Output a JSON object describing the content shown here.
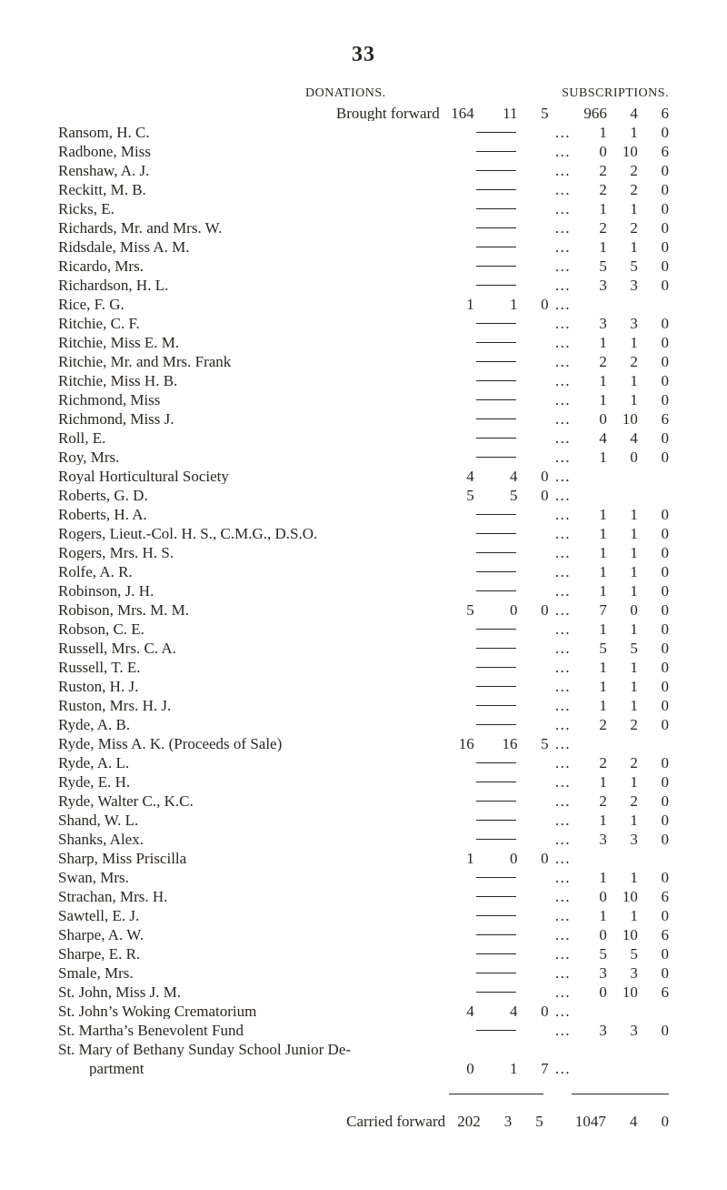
{
  "page_number": "33",
  "col_headers": {
    "donations": "DONATIONS.",
    "subscriptions": "SUBSCRIPTIONS."
  },
  "brought_forward_label": "Brought forward",
  "carried_forward_label": "Carried forward",
  "brought_forward": {
    "don": [
      "164",
      "11",
      "5"
    ],
    "sub": [
      "966",
      "4",
      "6"
    ]
  },
  "carried_forward": {
    "don": [
      "202",
      "3",
      "5"
    ],
    "sub": [
      "1047",
      "4",
      "0"
    ]
  },
  "rows": [
    {
      "name": "Ransom, H. C.",
      "don": null,
      "sub": [
        "1",
        "1",
        "0"
      ]
    },
    {
      "name": "Radbone, Miss",
      "don": null,
      "sub": [
        "0",
        "10",
        "6"
      ]
    },
    {
      "name": "Renshaw, A. J.",
      "don": null,
      "sub": [
        "2",
        "2",
        "0"
      ]
    },
    {
      "name": "Reckitt, M. B.",
      "don": null,
      "sub": [
        "2",
        "2",
        "0"
      ]
    },
    {
      "name": "Ricks, E.",
      "don": null,
      "sub": [
        "1",
        "1",
        "0"
      ]
    },
    {
      "name": "Richards, Mr. and Mrs. W.",
      "don": null,
      "sub": [
        "2",
        "2",
        "0"
      ]
    },
    {
      "name": "Ridsdale, Miss A. M.",
      "don": null,
      "sub": [
        "1",
        "1",
        "0"
      ]
    },
    {
      "name": "Ricardo, Mrs.",
      "don": null,
      "sub": [
        "5",
        "5",
        "0"
      ]
    },
    {
      "name": "Richardson, H. L.",
      "don": null,
      "sub": [
        "3",
        "3",
        "0"
      ]
    },
    {
      "name": "Rice, F. G.",
      "don": [
        "1",
        "1",
        "0"
      ],
      "sub": null,
      "no_sub_dash": true
    },
    {
      "name": "Ritchie, C. F.",
      "don": null,
      "sub": [
        "3",
        "3",
        "0"
      ]
    },
    {
      "name": "Ritchie, Miss E. M.",
      "don": null,
      "sub": [
        "1",
        "1",
        "0"
      ]
    },
    {
      "name": "Ritchie, Mr. and Mrs. Frank",
      "don": null,
      "sub": [
        "2",
        "2",
        "0"
      ]
    },
    {
      "name": "Ritchie, Miss H. B.",
      "don": null,
      "sub": [
        "1",
        "1",
        "0"
      ]
    },
    {
      "name": "Richmond, Miss",
      "don": null,
      "sub": [
        "1",
        "1",
        "0"
      ]
    },
    {
      "name": "Richmond, Miss J.",
      "don": null,
      "sub": [
        "0",
        "10",
        "6"
      ]
    },
    {
      "name": "Roll, E.",
      "don": null,
      "sub": [
        "4",
        "4",
        "0"
      ]
    },
    {
      "name": "Roy, Mrs.",
      "don": null,
      "sub": [
        "1",
        "0",
        "0"
      ]
    },
    {
      "name": "Royal Horticultural Society",
      "don": [
        "4",
        "4",
        "0"
      ],
      "sub": null,
      "no_sub_dash": true
    },
    {
      "name": "Roberts, G. D.",
      "don": [
        "5",
        "5",
        "0"
      ],
      "sub": null,
      "no_sub_dash": true
    },
    {
      "name": "Roberts, H. A.",
      "don": null,
      "sub": [
        "1",
        "1",
        "0"
      ]
    },
    {
      "name": "Rogers, Lieut.-Col. H. S., C.M.G., D.S.O.",
      "don": null,
      "sub": [
        "1",
        "1",
        "0"
      ]
    },
    {
      "name": "Rogers, Mrs. H. S.",
      "don": null,
      "sub": [
        "1",
        "1",
        "0"
      ]
    },
    {
      "name": "Rolfe, A. R.",
      "don": null,
      "sub": [
        "1",
        "1",
        "0"
      ]
    },
    {
      "name": "Robinson, J. H.",
      "don": null,
      "sub": [
        "1",
        "1",
        "0"
      ]
    },
    {
      "name": "Robison, Mrs. M. M.",
      "don": [
        "5",
        "0",
        "0"
      ],
      "sub": [
        "7",
        "0",
        "0"
      ]
    },
    {
      "name": "Robson, C. E.",
      "don": null,
      "sub": [
        "1",
        "1",
        "0"
      ]
    },
    {
      "name": "Russell, Mrs. C. A.",
      "don": null,
      "sub": [
        "5",
        "5",
        "0"
      ]
    },
    {
      "name": "Russell, T. E.",
      "don": null,
      "sub": [
        "1",
        "1",
        "0"
      ]
    },
    {
      "name": "Ruston, H. J.",
      "don": null,
      "sub": [
        "1",
        "1",
        "0"
      ]
    },
    {
      "name": "Ruston, Mrs. H. J.",
      "don": null,
      "sub": [
        "1",
        "1",
        "0"
      ]
    },
    {
      "name": "Ryde, A. B.",
      "don": null,
      "sub": [
        "2",
        "2",
        "0"
      ]
    },
    {
      "name": "Ryde, Miss A. K. (Proceeds of Sale)",
      "don": [
        "16",
        "16",
        "5"
      ],
      "sub": null,
      "no_sub_dash": true
    },
    {
      "name": "Ryde, A. L.",
      "don": null,
      "sub": [
        "2",
        "2",
        "0"
      ]
    },
    {
      "name": "Ryde, E. H.",
      "don": null,
      "sub": [
        "1",
        "1",
        "0"
      ]
    },
    {
      "name": "Ryde, Walter C., K.C.",
      "don": null,
      "sub": [
        "2",
        "2",
        "0"
      ]
    },
    {
      "name": "Shand, W. L.",
      "don": null,
      "sub": [
        "1",
        "1",
        "0"
      ]
    },
    {
      "name": "Shanks, Alex.",
      "don": null,
      "sub": [
        "3",
        "3",
        "0"
      ]
    },
    {
      "name": "Sharp, Miss Priscilla",
      "don": [
        "1",
        "0",
        "0"
      ],
      "sub": null,
      "no_sub_dash": true
    },
    {
      "name": "Swan, Mrs.",
      "don": null,
      "sub": [
        "1",
        "1",
        "0"
      ]
    },
    {
      "name": "Strachan, Mrs. H.",
      "don": null,
      "sub": [
        "0",
        "10",
        "6"
      ]
    },
    {
      "name": "Sawtell, E. J.",
      "don": null,
      "sub": [
        "1",
        "1",
        "0"
      ]
    },
    {
      "name": "Sharpe, A. W.",
      "don": null,
      "sub": [
        "0",
        "10",
        "6"
      ]
    },
    {
      "name": "Sharpe, E. R.",
      "don": null,
      "sub": [
        "5",
        "5",
        "0"
      ]
    },
    {
      "name": "Smale, Mrs.",
      "don": null,
      "sub": [
        "3",
        "3",
        "0"
      ]
    },
    {
      "name": "St. John, Miss J. M.",
      "don": null,
      "sub": [
        "0",
        "10",
        "6"
      ]
    },
    {
      "name": "St. John’s Woking Crematorium",
      "don": [
        "4",
        "4",
        "0"
      ],
      "sub": null,
      "no_sub_dash": true
    },
    {
      "name": "St. Martha’s Benevolent Fund",
      "don": null,
      "sub": [
        "3",
        "3",
        "0"
      ]
    },
    {
      "name": "St. Mary of Bethany Sunday School Junior De-",
      "no_don_dash": true,
      "no_sub_dash": true
    },
    {
      "name": "  partment",
      "don": [
        "0",
        "1",
        "7"
      ],
      "sub": null,
      "no_sub_dash": true
    }
  ]
}
